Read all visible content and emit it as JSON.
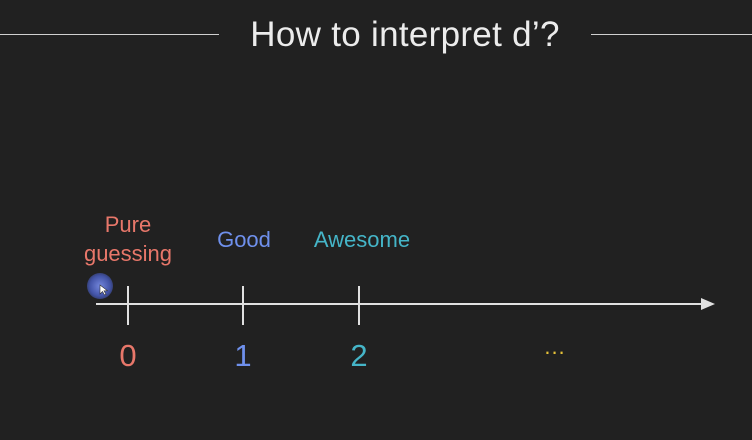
{
  "slide": {
    "title": "How to interpret d’?"
  },
  "axis": {
    "ticks": [
      {
        "value": "0",
        "caption": "Pure\nguessing",
        "color": "#e8776a"
      },
      {
        "value": "1",
        "caption": "Good",
        "color": "#6f90ec"
      },
      {
        "value": "2",
        "caption": "Awesome",
        "color": "#45b5c8"
      }
    ],
    "continuation": "...",
    "continuation_color": "#e6c238",
    "line_color": "#e0e0e0"
  },
  "labels": {
    "pure_line1": "Pure",
    "pure_line2": "guessing",
    "good": "Good",
    "awesome": "Awesome"
  },
  "tick_labels": {
    "zero": "0",
    "one": "1",
    "two": "2",
    "more": "..."
  },
  "colors": {
    "background": "#212121",
    "title": "#ececec",
    "pure": "#e8776a",
    "good": "#6f90ec",
    "awesome": "#45b5c8",
    "ellipsis": "#e6c238"
  }
}
